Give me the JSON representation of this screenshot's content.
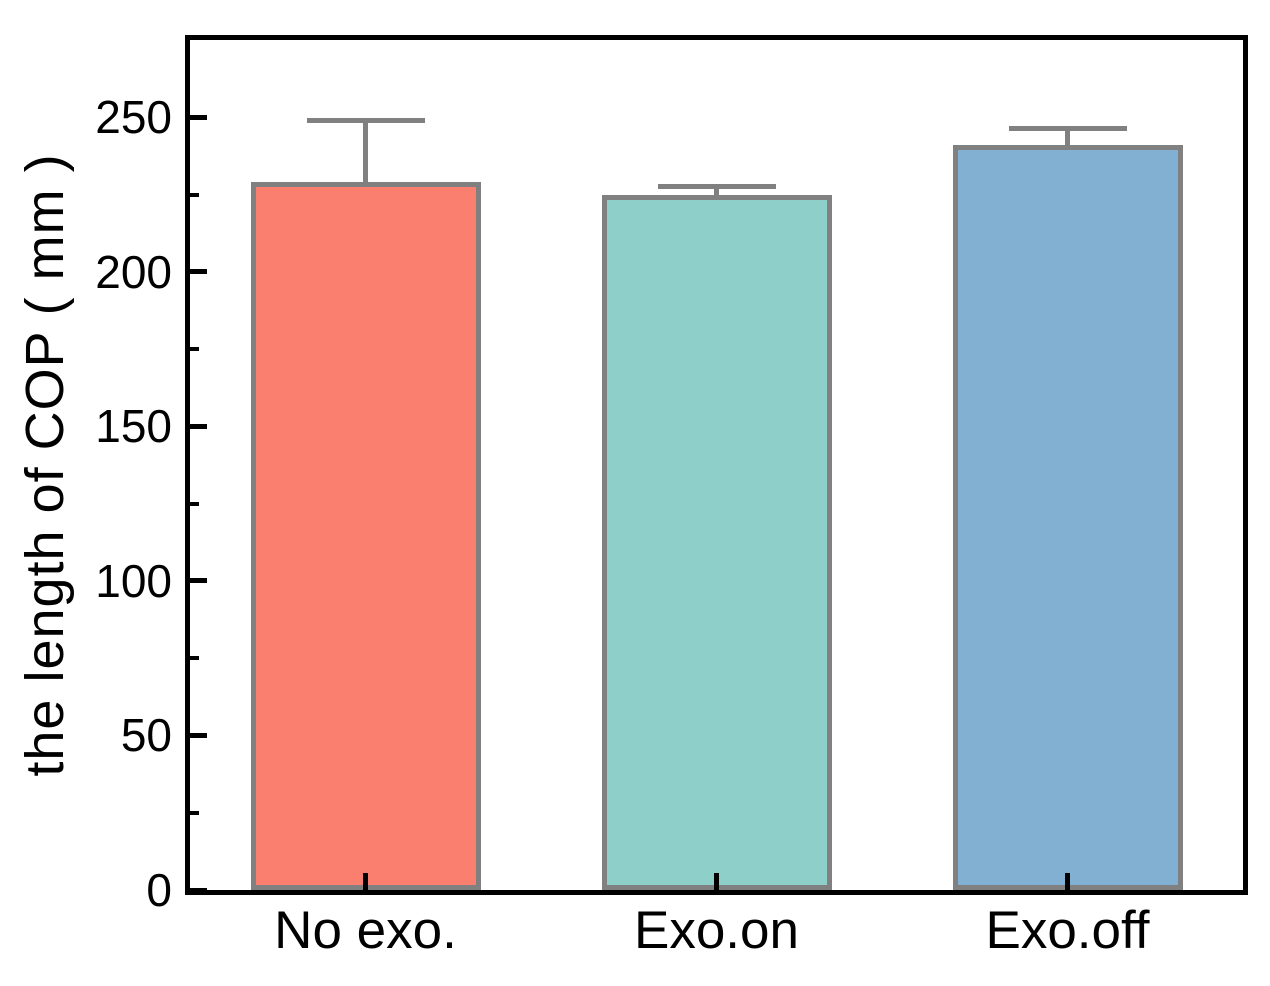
{
  "chart_data": {
    "type": "bar",
    "ylabel": "the length of COP ( mm )",
    "xlabel": "",
    "categories": [
      "No exo.",
      "Exo.on",
      "Exo.off"
    ],
    "series": [
      {
        "values": [
          229,
          225,
          241
        ],
        "errors_plus": [
          20,
          2.5,
          5.5
        ]
      }
    ],
    "bar_colors": [
      "#FA7F6F",
      "#8ECFC9",
      "#82B0D2"
    ],
    "bar_edge_color": "#808080",
    "error_bar_color": "#808080",
    "axis_color": "#000000",
    "text_color": "#000000",
    "background_color": "#ffffff",
    "ylim": [
      0,
      275
    ],
    "yticks_major": [
      0,
      50,
      100,
      150,
      200,
      250
    ],
    "yticks_minor": [
      25,
      75,
      125,
      175,
      225
    ],
    "tick_direction": "in",
    "grid": false,
    "legend": "none"
  }
}
